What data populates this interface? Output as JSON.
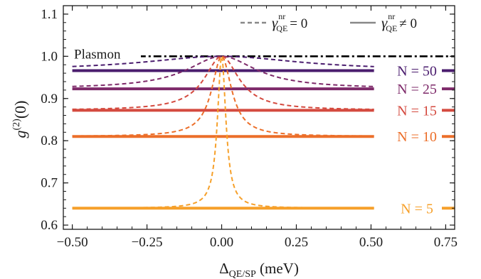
{
  "chart_data": {
    "type": "line",
    "xlabel": "Δ",
    "xlabel_sub": "QE/SP",
    "xlabel_unit": "(meV)",
    "ylabel": "g",
    "ylabel_sup": "(2)",
    "ylabel_arg": "(0)",
    "xlim": [
      -0.53,
      0.78
    ],
    "ylim": [
      0.59,
      1.12
    ],
    "xticks": [
      -0.5,
      -0.25,
      0.0,
      0.25,
      0.5,
      0.75
    ],
    "xtick_labels": [
      "−0.50",
      "−0.25",
      "0.00",
      "0.25",
      "0.50",
      "0.75"
    ],
    "yticks": [
      0.6,
      0.7,
      0.8,
      0.9,
      1.0,
      1.1
    ],
    "ytick_labels": [
      "0.6",
      "0.7",
      "0.8",
      "0.9",
      "1.0",
      "1.1"
    ],
    "grid": false,
    "legend": {
      "placement": "top-right",
      "entries": [
        {
          "style": "dashed",
          "symbol": "γ",
          "sup": "nr",
          "sub": "QE",
          "rel": "= 0"
        },
        {
          "style": "solid",
          "symbol": "γ",
          "sup": "nr",
          "sub": "QE",
          "rel": "≠ 0"
        }
      ]
    },
    "plasmon": {
      "label": "Plasmon",
      "value": 1.0,
      "color": "#000000",
      "x_range": [
        -0.49,
        0.78
      ]
    },
    "series": [
      {
        "label": "N = 50",
        "color": "#4a1c6e",
        "solid_value": 0.966,
        "dashed_width": 0.32
      },
      {
        "label": "N = 25",
        "color": "#7e2a6a",
        "solid_value": 0.923,
        "dashed_width": 0.14
      },
      {
        "label": "N = 15",
        "color": "#d44a3f",
        "solid_value": 0.872,
        "dashed_width": 0.07
      },
      {
        "label": "N = 10",
        "color": "#ec6f2a",
        "solid_value": 0.81,
        "dashed_width": 0.04
      },
      {
        "label": "N = 5",
        "color": "#f6a02a",
        "solid_value": 0.64,
        "dashed_width": 0.017
      }
    ],
    "x_range_solid": [
      -0.5,
      0.51
    ],
    "x_range_dashed": [
      -0.5,
      0.51
    ]
  }
}
